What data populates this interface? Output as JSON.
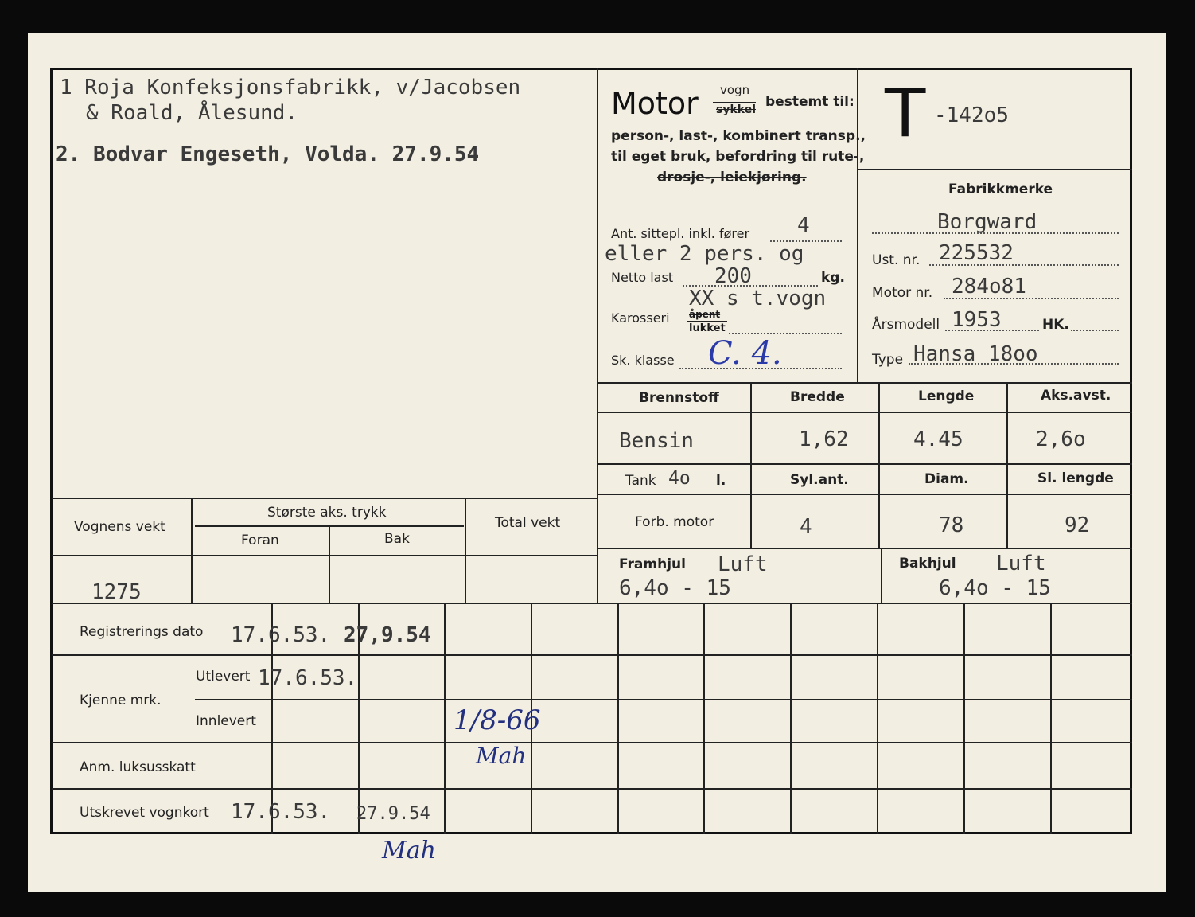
{
  "owners": {
    "line1": "1 Roja Konfeksjonsfabrikk, v/Jacobsen",
    "line2": "& Roald, Ålesund.",
    "line3": "2. Bodvar Engeseth, Volda.  27.9.54"
  },
  "motor": {
    "title": "Motor",
    "vogn": "vogn",
    "sykkel": "sykkel",
    "bestemt": "bestemt til:",
    "line1": "person-, last-, kombinert transp.,",
    "line2": "til eget bruk, befordring til rute-,",
    "line3": "drosje-, leiekjøring.",
    "seats_label": "Ant. sittepl. inkl. fører",
    "seats_value": "4",
    "seats_extra": "eller 2 pers. og",
    "netto_label": "Netto last",
    "netto_value": "200",
    "netto_unit": "kg.",
    "karosseri_label": "Karosseri",
    "apent": "åpent",
    "lukket": "lukket",
    "karosseri_value": "XX s t.vogn",
    "sk_label": "Sk. klasse",
    "sk_value": "C. 4."
  },
  "reg": {
    "letter": "T",
    "number": "-142o5"
  },
  "vehicle": {
    "fabrikkmerke_label": "Fabrikkmerke",
    "fabrikkmerke": "Borgward",
    "ust_label": "Ust. nr.",
    "ust": "225532",
    "motor_label": "Motor nr.",
    "motor": "284o81",
    "arsmodell_label": "Årsmodell",
    "arsmodell": "1953",
    "hk_label": "HK.",
    "type_label": "Type",
    "type": "Hansa 18oo"
  },
  "specs": {
    "headers": [
      "Brennstoff",
      "Bredde",
      "Lengde",
      "Aks.avst."
    ],
    "values": [
      "Bensin",
      "1,62",
      "4.45",
      "2,6o"
    ],
    "tank_label": "Tank",
    "tank_value": "4o",
    "tank_unit": "l.",
    "headers2": [
      "Syl.ant.",
      "Diam.",
      "Sl. lengde"
    ],
    "forb_label": "Forb. motor",
    "values2": [
      "4",
      "78",
      "92"
    ],
    "framhjul_label": "Framhjul",
    "framhjul_type": "Luft",
    "framhjul_size": "6,4o  - 15",
    "bakhjul_label": "Bakhjul",
    "bakhjul_type": "Luft",
    "bakhjul_size": "6,4o - 15"
  },
  "weights": {
    "vognens_vekt": "Vognens  vekt",
    "storste": "Største  aks. trykk",
    "foran": "Foran",
    "bak": "Bak",
    "total": "Total vekt",
    "vekt_value": "1275"
  },
  "bottom": {
    "reg_dato_label": "Registrerings dato",
    "reg_dato_1": "17.6.53.",
    "reg_dato_2": "27,9.54",
    "kjenne_label": "Kjenne mrk.",
    "utlevert_label": "Utlevert",
    "utlevert_value": "17.6.53.",
    "innlevert_label": "Innlevert",
    "innlevert_value": "1/8-66",
    "anm_label": "Anm.  luksusskatt",
    "utskrevet_label": "Utskrevet vognkort",
    "utskrevet_1": "17.6.53.",
    "utskrevet_2": "27.9.54",
    "signature": "Mah"
  }
}
